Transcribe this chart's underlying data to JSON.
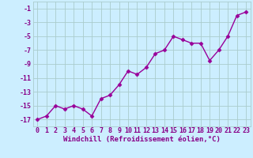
{
  "x": [
    0,
    1,
    2,
    3,
    4,
    5,
    6,
    7,
    8,
    9,
    10,
    11,
    12,
    13,
    14,
    15,
    16,
    17,
    18,
    19,
    20,
    21,
    22,
    23
  ],
  "y": [
    -17,
    -16.5,
    -15,
    -15.5,
    -15,
    -15.5,
    -16.5,
    -14,
    -13.5,
    -12,
    -10,
    -10.5,
    -9.5,
    -7.5,
    -7,
    -5,
    -5.5,
    -6,
    -6,
    -8.5,
    -7,
    -5,
    -2,
    -1.5
  ],
  "line_color": "#990099",
  "marker": "D",
  "markersize": 2.5,
  "linewidth": 1.0,
  "xlabel": "Windchill (Refroidissement éolien,°C)",
  "xlabel_fontsize": 6.5,
  "ylabel_ticks": [
    -17,
    -15,
    -13,
    -11,
    -9,
    -7,
    -5,
    -3,
    -1
  ],
  "ytick_labels": [
    "-17",
    "-15",
    "-13",
    "-11",
    "-9",
    "-7",
    "-5",
    "-3",
    "-1"
  ],
  "xtick_labels": [
    "0",
    "1",
    "2",
    "3",
    "4",
    "5",
    "6",
    "7",
    "8",
    "9",
    "10",
    "11",
    "12",
    "13",
    "14",
    "15",
    "16",
    "17",
    "18",
    "19",
    "20",
    "21",
    "22",
    "23"
  ],
  "ylim": [
    -18,
    0
  ],
  "xlim": [
    -0.5,
    23.5
  ],
  "bg_color": "#cceeff",
  "grid_color": "#aacccc",
  "tick_fontsize": 6.0,
  "tick_color": "#880088",
  "label_color": "#880088"
}
